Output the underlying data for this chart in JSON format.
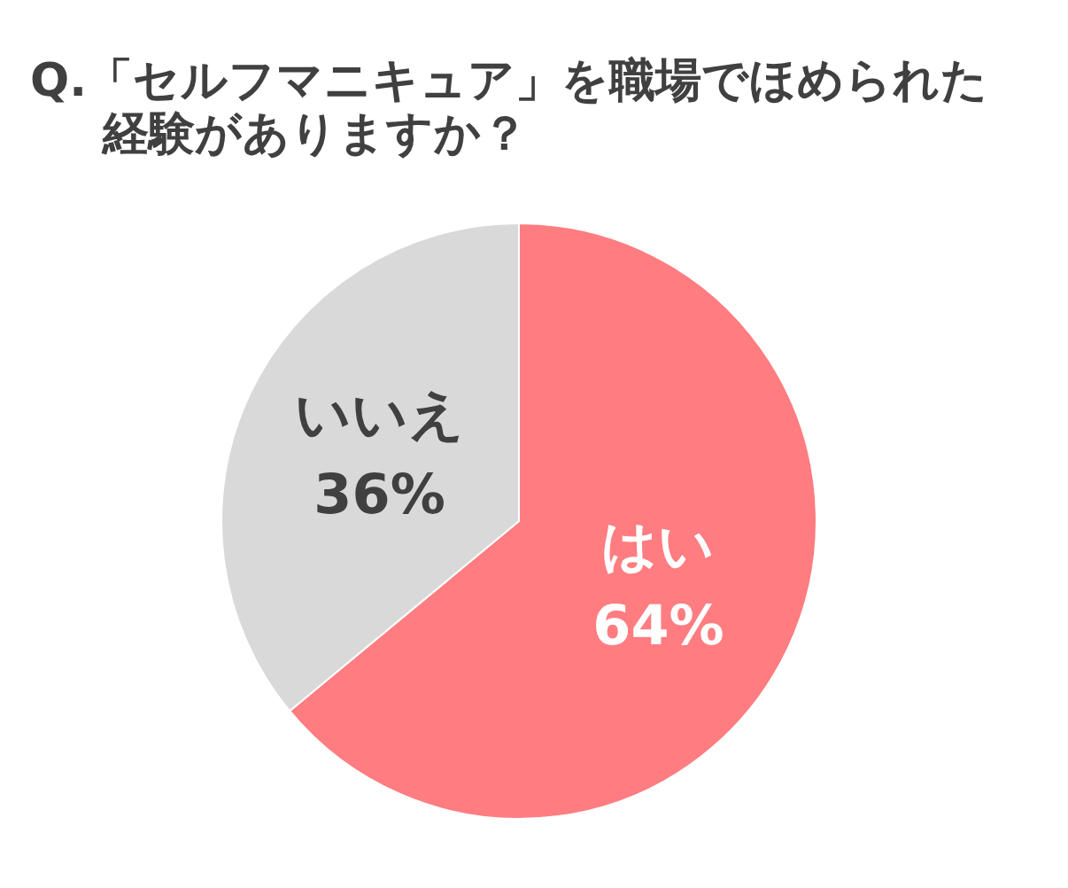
{
  "chart_data": {
    "type": "pie",
    "title": "Q.「セルフマニキュア」を職場でほめられた経験がありますか？",
    "categories": [
      "はい",
      "いいえ"
    ],
    "values": [
      64,
      36
    ],
    "colors": [
      "#ff7c80",
      "#d9d9d9"
    ],
    "value_labels": [
      "64%",
      "36%"
    ]
  }
}
